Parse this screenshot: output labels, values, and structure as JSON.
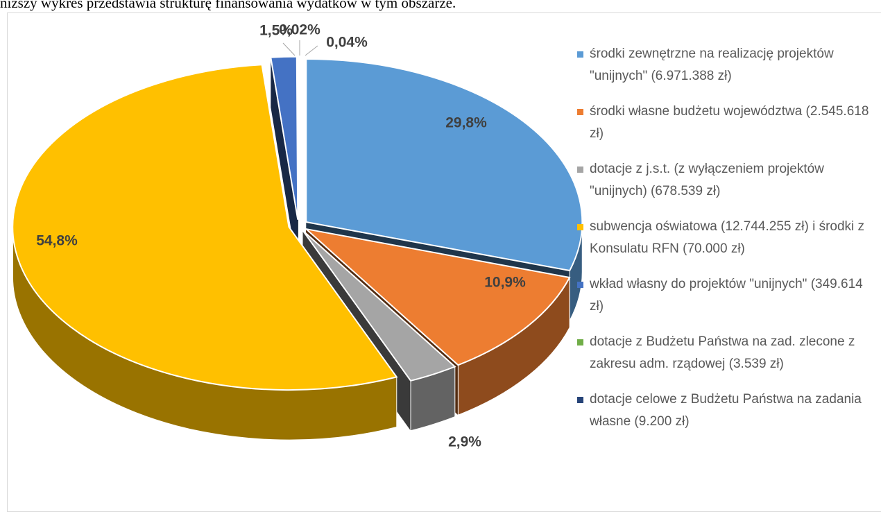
{
  "header": {
    "text": "niższy wykres przedstawia strukturę finansowania wydatków w tym obszarze."
  },
  "chart_data": {
    "type": "pie",
    "categories": [
      "środki zewnętrzne na realizację projektów \"unijnych\" (6.971.388 zł)",
      "środki własne budżetu województwa (2.545.618 zł)",
      "dotacje z j.s.t. (z wyłączeniem projektów \"unijnych) (678.539 zł)",
      "subwencja oświatowa (12.744.255 zł) i środki z Konsulatu RFN (70.000 zł)",
      "wkład własny do projektów \"unijnych\" (349.614 zł)",
      "dotacje z Budżetu Państwa na zad. zlecone z zakresu adm. rządowej (3.539 zł)",
      "dotacje celowe z Budżetu Państwa na zadania własne (9.200 zł)"
    ],
    "values": [
      29.8,
      10.9,
      2.9,
      54.8,
      1.5,
      0.02,
      0.04
    ],
    "value_labels": [
      "29,8%",
      "10,9%",
      "2,9%",
      "54,8%",
      "1,5%",
      "0,02%",
      "0,04%"
    ],
    "colors": [
      "#5b9bd5",
      "#ed7d31",
      "#a5a5a5",
      "#ffc000",
      "#4472c4",
      "#70ad47",
      "#264478"
    ],
    "legend": "right"
  }
}
